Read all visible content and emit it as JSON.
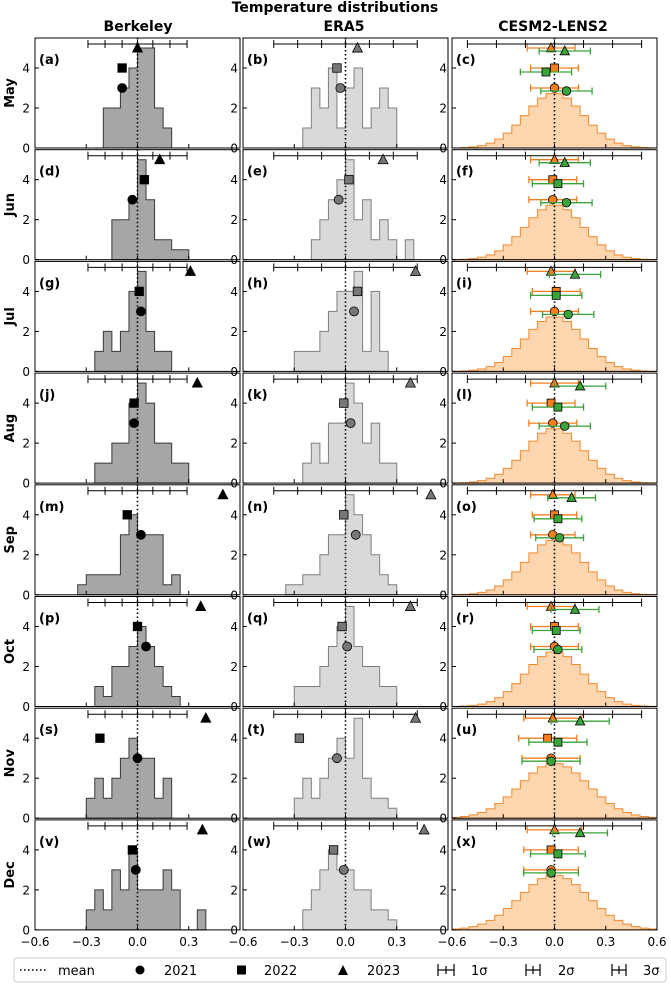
{
  "title": "Temperature distributions",
  "columns": [
    "Berkeley",
    "ERA5",
    "CESM2-LENS2"
  ],
  "rows": [
    "May",
    "Jun",
    "Jul",
    "Aug",
    "Sep",
    "Oct",
    "Nov",
    "Dec"
  ],
  "legend": {
    "mean": "mean",
    "y2021": "2021",
    "y2022": "2022",
    "y2023": "2023",
    "s1": "1σ",
    "s2": "2σ",
    "s3": "3σ"
  },
  "colors": {
    "berkeley_fill": "#a6a6a6",
    "era5_fill": "#d9d9d9",
    "era5_edge": "#7f7f7f",
    "cesm_fill": "#fdd5ae",
    "cesm_edge": "#f08a2e",
    "orange_marker": "#f47f1f",
    "green_marker": "#3aa33a"
  },
  "chart_data": {
    "type": "histogram grid",
    "xlim": [
      -0.6,
      0.6
    ],
    "ylim": [
      0,
      5.5
    ],
    "xticks": [
      "−0.6",
      "−0.3",
      "0.0",
      "0.3",
      "0.6"
    ],
    "yticks": [
      "0",
      "2",
      "4"
    ],
    "panels": [
      {
        "label": "(a)",
        "dataset": "Berkeley",
        "month": "May",
        "bins": [
          -0.2,
          -0.1,
          -0.05,
          0.0,
          0.1,
          0.15,
          0.2
        ],
        "counts": [
          2,
          3,
          4,
          5,
          2,
          1
        ],
        "mean": 0.0,
        "y2021": -0.09,
        "y2022": -0.09,
        "y2023": 0.0,
        "sigma_bar": {
          "ticks": [
            -0.29,
            -0.19,
            -0.09,
            0.09,
            0.19,
            0.29
          ]
        }
      },
      {
        "label": "(b)",
        "dataset": "ERA5",
        "month": "May",
        "bins": [
          -0.25,
          -0.2,
          -0.15,
          -0.1,
          -0.05,
          0.0,
          0.05,
          0.1,
          0.15,
          0.2,
          0.25,
          0.3
        ],
        "counts": [
          1,
          3,
          2,
          4,
          1,
          3,
          4,
          1,
          2,
          3,
          2
        ],
        "mean": 0.0,
        "y2021": -0.03,
        "y2022": -0.05,
        "y2023": 0.07,
        "sigma_bar": {
          "ticks": [
            -0.42,
            -0.28,
            -0.14,
            0.14,
            0.28,
            0.42
          ]
        }
      },
      {
        "label": "(c)",
        "dataset": "CESM2-LENS2",
        "month": "May",
        "dist_sigma": 0.17,
        "mean": 0.0,
        "orange": {
          "y2021": 0.0,
          "y2022": 0.0,
          "y2023": -0.02,
          "err": 0.14
        },
        "green": {
          "y2021": 0.07,
          "y2022": -0.05,
          "y2023": 0.06,
          "err": 0.15
        },
        "sigma_bar": {
          "ticks": [
            -0.51,
            -0.34,
            -0.17,
            0.17,
            0.34,
            0.51
          ]
        }
      },
      {
        "label": "(d)",
        "dataset": "Berkeley",
        "month": "Jun",
        "bins": [
          -0.15,
          -0.05,
          0.0,
          0.05,
          0.1,
          0.2,
          0.3
        ],
        "counts": [
          2,
          3,
          5,
          3,
          1,
          0.5
        ],
        "mean": 0.0,
        "y2021": -0.03,
        "y2022": 0.04,
        "y2023": 0.13
      },
      {
        "label": "(e)",
        "dataset": "ERA5",
        "month": "Jun",
        "bins": [
          -0.2,
          -0.15,
          -0.1,
          -0.05,
          0.0,
          0.05,
          0.1,
          0.15,
          0.2,
          0.25,
          0.3,
          0.35,
          0.4
        ],
        "counts": [
          1,
          2,
          3,
          4,
          5,
          2,
          3,
          1,
          2,
          1,
          0,
          1
        ],
        "mean": 0.0,
        "y2021": -0.04,
        "y2022": 0.02,
        "y2023": 0.22
      },
      {
        "label": "(f)",
        "dataset": "CESM2-LENS2",
        "month": "Jun",
        "dist_sigma": 0.17,
        "mean": 0.0,
        "orange": {
          "y2021": -0.01,
          "y2022": -0.01,
          "y2023": 0.0,
          "err": 0.14
        },
        "green": {
          "y2021": 0.07,
          "y2022": 0.02,
          "y2023": 0.06,
          "err": 0.15
        }
      },
      {
        "label": "(g)",
        "dataset": "Berkeley",
        "month": "Jul",
        "bins": [
          -0.25,
          -0.2,
          -0.15,
          -0.1,
          -0.05,
          0.0,
          0.05,
          0.1,
          0.15,
          0.2
        ],
        "counts": [
          1,
          2,
          1,
          2,
          4,
          5,
          2,
          1,
          1
        ],
        "mean": 0.0,
        "y2021": 0.02,
        "y2022": 0.01,
        "y2023": 0.31
      },
      {
        "label": "(h)",
        "dataset": "ERA5",
        "month": "Jul",
        "bins": [
          -0.3,
          -0.25,
          -0.2,
          -0.15,
          -0.1,
          -0.05,
          0.0,
          0.05,
          0.1,
          0.15,
          0.2,
          0.25
        ],
        "counts": [
          1,
          1,
          1,
          2,
          3,
          4,
          4,
          5,
          1,
          4,
          1
        ],
        "mean": 0.0,
        "y2021": 0.05,
        "y2022": 0.07,
        "y2023": 0.41
      },
      {
        "label": "(i)",
        "dataset": "CESM2-LENS2",
        "month": "Jul",
        "dist_sigma": 0.17,
        "mean": 0.0,
        "orange": {
          "y2021": 0.0,
          "y2022": 0.01,
          "y2023": -0.02,
          "err": 0.14
        },
        "green": {
          "y2021": 0.08,
          "y2022": 0.01,
          "y2023": 0.12,
          "err": 0.15
        }
      },
      {
        "label": "(j)",
        "dataset": "Berkeley",
        "month": "Aug",
        "bins": [
          -0.25,
          -0.15,
          -0.1,
          -0.05,
          0.0,
          0.05,
          0.1,
          0.2,
          0.3
        ],
        "counts": [
          1,
          2,
          2,
          4,
          5,
          4,
          2,
          1
        ],
        "mean": 0.0,
        "y2021": -0.02,
        "y2022": -0.02,
        "y2023": 0.35
      },
      {
        "label": "(k)",
        "dataset": "ERA5",
        "month": "Aug",
        "bins": [
          -0.25,
          -0.2,
          -0.15,
          -0.1,
          -0.05,
          0.0,
          0.05,
          0.1,
          0.15,
          0.2,
          0.3
        ],
        "counts": [
          1,
          2,
          1,
          3,
          3,
          5,
          4,
          2,
          3,
          1
        ],
        "mean": 0.0,
        "y2021": 0.03,
        "y2022": -0.01,
        "y2023": 0.38
      },
      {
        "label": "(l)",
        "dataset": "CESM2-LENS2",
        "month": "Aug",
        "dist_sigma": 0.17,
        "mean": 0.0,
        "orange": {
          "y2021": -0.01,
          "y2022": -0.02,
          "y2023": 0.0,
          "err": 0.14
        },
        "green": {
          "y2021": 0.06,
          "y2022": 0.02,
          "y2023": 0.15,
          "err": 0.15
        }
      },
      {
        "label": "(m)",
        "dataset": "Berkeley",
        "month": "Sep",
        "bins": [
          -0.35,
          -0.3,
          -0.1,
          -0.05,
          0.0,
          0.05,
          0.15,
          0.2,
          0.25
        ],
        "counts": [
          0.5,
          1,
          3,
          4,
          3,
          3,
          0.5,
          1
        ],
        "mean": 0.0,
        "y2021": 0.02,
        "y2022": -0.06,
        "y2023": 0.5
      },
      {
        "label": "(n)",
        "dataset": "ERA5",
        "month": "Sep",
        "bins": [
          -0.35,
          -0.25,
          -0.15,
          -0.1,
          -0.05,
          0.0,
          0.05,
          0.1,
          0.15,
          0.2,
          0.25,
          0.3
        ],
        "counts": [
          0.5,
          1,
          2,
          3,
          3,
          5,
          4,
          3,
          2,
          1,
          0.5
        ],
        "mean": 0.0,
        "y2021": 0.06,
        "y2022": -0.01,
        "y2023": 0.5
      },
      {
        "label": "(o)",
        "dataset": "CESM2-LENS2",
        "month": "Sep",
        "dist_sigma": 0.17,
        "mean": 0.0,
        "orange": {
          "y2021": -0.01,
          "y2022": 0.0,
          "y2023": -0.01,
          "err": 0.13
        },
        "green": {
          "y2021": 0.03,
          "y2022": 0.02,
          "y2023": 0.1,
          "err": 0.14
        }
      },
      {
        "label": "(p)",
        "dataset": "Berkeley",
        "month": "Oct",
        "bins": [
          -0.25,
          -0.2,
          -0.15,
          -0.1,
          -0.05,
          0.0,
          0.05,
          0.1,
          0.15,
          0.2,
          0.25
        ],
        "counts": [
          1,
          0.5,
          2,
          2,
          3,
          4,
          3,
          2,
          1,
          0.5
        ],
        "mean": 0.0,
        "y2021": 0.05,
        "y2022": 0.0,
        "y2023": 0.37
      },
      {
        "label": "(q)",
        "dataset": "ERA5",
        "month": "Oct",
        "bins": [
          -0.3,
          -0.25,
          -0.2,
          -0.15,
          -0.1,
          -0.05,
          0.0,
          0.05,
          0.1,
          0.15,
          0.2,
          0.25,
          0.3
        ],
        "counts": [
          1,
          1,
          1,
          2,
          3,
          4,
          5,
          3,
          2,
          2,
          1,
          1
        ],
        "mean": 0.0,
        "y2021": 0.01,
        "y2022": -0.02,
        "y2023": 0.38
      },
      {
        "label": "(r)",
        "dataset": "CESM2-LENS2",
        "month": "Oct",
        "dist_sigma": 0.17,
        "mean": 0.0,
        "orange": {
          "y2021": 0.0,
          "y2022": 0.0,
          "y2023": -0.02,
          "err": 0.14
        },
        "green": {
          "y2021": 0.02,
          "y2022": 0.01,
          "y2023": 0.12,
          "err": 0.14
        }
      },
      {
        "label": "(s)",
        "dataset": "Berkeley",
        "month": "Nov",
        "bins": [
          -0.3,
          -0.25,
          -0.2,
          -0.15,
          -0.1,
          -0.05,
          0.0,
          0.1,
          0.15,
          0.2
        ],
        "counts": [
          1,
          2,
          1,
          2,
          3,
          4,
          3,
          1,
          2
        ],
        "mean": 0.0,
        "y2021": 0.0,
        "y2022": -0.22,
        "y2023": 0.4
      },
      {
        "label": "(t)",
        "dataset": "ERA5",
        "month": "Nov",
        "bins": [
          -0.3,
          -0.25,
          -0.2,
          -0.15,
          -0.1,
          -0.05,
          0.0,
          0.05,
          0.1,
          0.15,
          0.2,
          0.25,
          0.3
        ],
        "counts": [
          1,
          2,
          1,
          2,
          3,
          4,
          3,
          5,
          2,
          1,
          1,
          0.5
        ],
        "mean": 0.0,
        "y2021": -0.05,
        "y2022": -0.27,
        "y2023": 0.41
      },
      {
        "label": "(u)",
        "dataset": "CESM2-LENS2",
        "month": "Nov",
        "dist_sigma": 0.2,
        "mean": 0.0,
        "orange": {
          "y2021": -0.02,
          "y2022": -0.04,
          "y2023": -0.01,
          "err": 0.17
        },
        "green": {
          "y2021": -0.02,
          "y2022": 0.02,
          "y2023": 0.15,
          "err": 0.17
        }
      },
      {
        "label": "(v)",
        "dataset": "Berkeley",
        "month": "Dec",
        "bins": [
          -0.3,
          -0.25,
          -0.2,
          -0.15,
          -0.1,
          -0.05,
          0.0,
          0.05,
          0.1,
          0.15,
          0.2,
          0.25,
          0.35,
          0.4
        ],
        "counts": [
          1,
          2,
          1,
          3,
          2,
          4,
          2,
          2,
          2,
          3,
          2,
          0,
          1
        ],
        "mean": 0.0,
        "y2021": -0.01,
        "y2022": -0.03,
        "y2023": 0.38
      },
      {
        "label": "(w)",
        "dataset": "ERA5",
        "month": "Dec",
        "bins": [
          -0.25,
          -0.2,
          -0.15,
          -0.1,
          -0.05,
          0.0,
          0.05,
          0.1,
          0.15,
          0.2,
          0.25,
          0.3
        ],
        "counts": [
          1,
          2,
          3,
          4,
          3,
          3,
          2,
          2,
          1,
          1,
          0.5
        ],
        "mean": 0.0,
        "y2021": -0.01,
        "y2022": -0.07,
        "y2023": 0.46
      },
      {
        "label": "(x)",
        "dataset": "CESM2-LENS2",
        "month": "Dec",
        "dist_sigma": 0.2,
        "mean": 0.0,
        "orange": {
          "y2021": -0.02,
          "y2022": -0.02,
          "y2023": 0.0,
          "err": 0.16
        },
        "green": {
          "y2021": -0.02,
          "y2022": 0.02,
          "y2023": 0.15,
          "err": 0.16
        }
      }
    ]
  }
}
